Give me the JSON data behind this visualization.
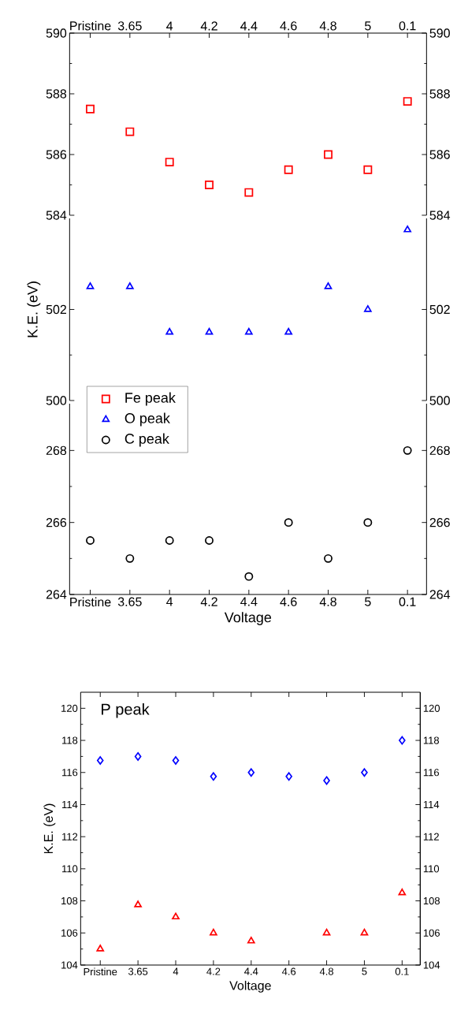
{
  "chart_data": [
    {
      "type": "scatter",
      "categories": [
        "Pristine",
        "3.65",
        "4",
        "4.2",
        "4.4",
        "4.6",
        "4.8",
        "5",
        "0.1"
      ],
      "series": [
        {
          "name": "Fe peak",
          "color": "#ff0000",
          "marker": "square",
          "values": [
            587.5,
            586.75,
            585.75,
            585,
            584.75,
            585.5,
            586,
            585.5,
            587.75
          ]
        }
      ],
      "ylim": [
        584,
        590
      ],
      "yticks": [
        584,
        586,
        588,
        590
      ],
      "y2lim": [
        584,
        590
      ],
      "y2ticks": [
        584,
        586,
        588,
        590
      ]
    },
    {
      "type": "scatter",
      "categories": [
        null,
        null,
        null,
        null,
        null,
        null,
        null,
        null,
        null
      ],
      "series": [
        {
          "name": "O peak",
          "color": "#0000ff",
          "marker": "triangle",
          "values": [
            502.5,
            502.5,
            501.5,
            501.5,
            501.5,
            501.5,
            502.5,
            502,
            503.75
          ]
        }
      ],
      "ylabel": "K.E. (eV)",
      "ylim": [
        500,
        504
      ],
      "yticks": [
        500,
        502
      ],
      "y2lim": [
        500,
        504
      ],
      "y2ticks": [
        500,
        502
      ],
      "tick_labels": "y"
    },
    {
      "type": "scatter",
      "categories": [
        "Pristine",
        "3.65",
        "4",
        "4.2",
        "4.4",
        "4.6",
        "4.8",
        "5",
        "0.1"
      ],
      "series": [
        {
          "name": "C peak",
          "color": "#000000",
          "marker": "circle",
          "values": [
            265.5,
            265,
            265.5,
            265.5,
            264.5,
            266,
            265,
            266,
            268
          ]
        }
      ],
      "xlabel": "Voltage",
      "ylim": [
        264,
        269.3
      ],
      "yticks": [
        264,
        266,
        268
      ],
      "y2lim": [
        264,
        269.3
      ],
      "y2ticks": [
        264,
        266,
        268
      ],
      "legend": "top left"
    },
    {
      "type": "scatter",
      "categories": [
        "Pristine",
        "3.65",
        "4",
        "4.2",
        "4.4",
        "4.6",
        "4.8",
        "5",
        "0.1"
      ],
      "series": [
        {
          "color": "#0000ff",
          "marker": "diamond",
          "values": [
            116.75,
            117,
            116.75,
            115.75,
            116,
            115.75,
            115.5,
            116,
            118
          ]
        },
        {
          "color": "#ff0000",
          "marker": "triangle",
          "values": [
            105,
            107.75,
            107,
            106,
            105.5,
            null,
            106,
            106,
            108.5
          ]
        }
      ],
      "xlabel": "Voltage",
      "ylabel": "K.E. (eV)",
      "annotations": [
        "P peak"
      ],
      "ylim": [
        104,
        121
      ],
      "yticks": [
        104,
        106,
        108,
        110,
        112,
        114,
        116,
        118,
        120
      ],
      "y2lim": [
        104,
        121
      ],
      "y2ticks": [
        104,
        106,
        108,
        110,
        112,
        114,
        116,
        118,
        120
      ]
    }
  ]
}
